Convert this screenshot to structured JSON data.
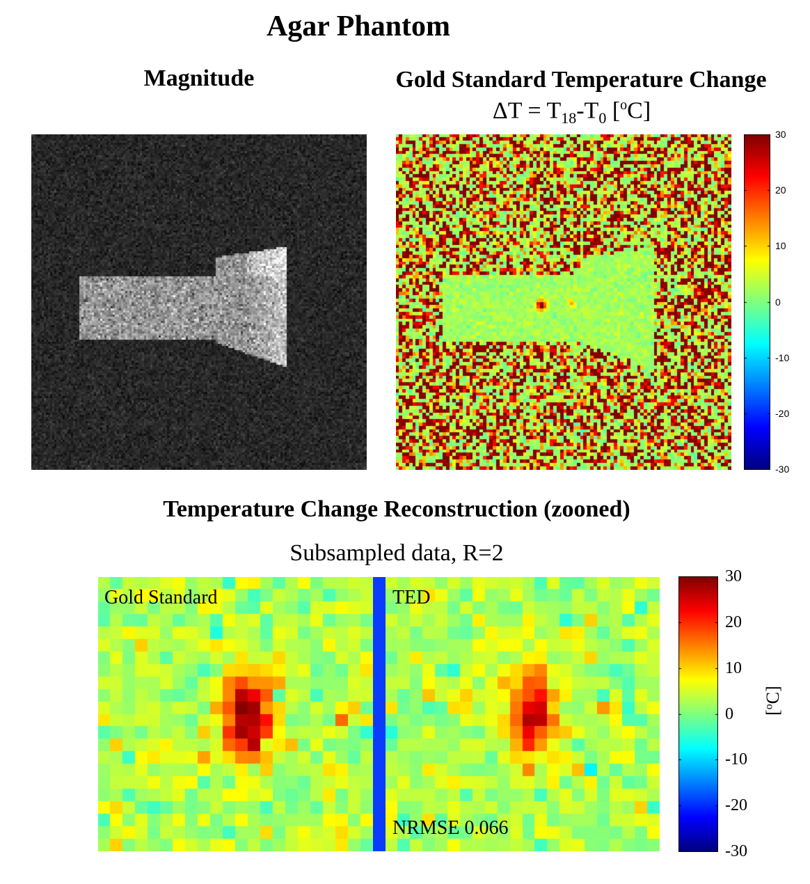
{
  "title": "Agar Phantom",
  "magnitude_panel": {
    "title": "Magnitude"
  },
  "gold_standard_panel": {
    "title": "Gold Standard Temperature Change",
    "formula_prefix": "ΔT = T",
    "formula_sub1": "18",
    "formula_mid": "-T",
    "formula_sub2": "0",
    "formula_open": " [",
    "formula_unit_sup": "o",
    "formula_close": "C]",
    "colorbar": {
      "ticks": [
        "30",
        "20",
        "10",
        "0",
        "-10",
        "-20",
        "-30"
      ],
      "min": -30,
      "max": 30
    }
  },
  "reconstruction": {
    "title": "Temperature Change Reconstruction (zooned)",
    "subtitle": "Subsampled data, R=2",
    "left_label": "Gold Standard",
    "right_label": "TED",
    "metric_label": "NRMSE 0.066",
    "colorbar": {
      "ticks": [
        "30",
        "20",
        "10",
        "0",
        "-10",
        "-20",
        "-30"
      ],
      "unit_open": "[",
      "unit_sup": "o",
      "unit_close": "C]",
      "min": -30,
      "max": 30
    }
  },
  "colors": {
    "divider": "#0a3cff",
    "colormap": "jet"
  }
}
